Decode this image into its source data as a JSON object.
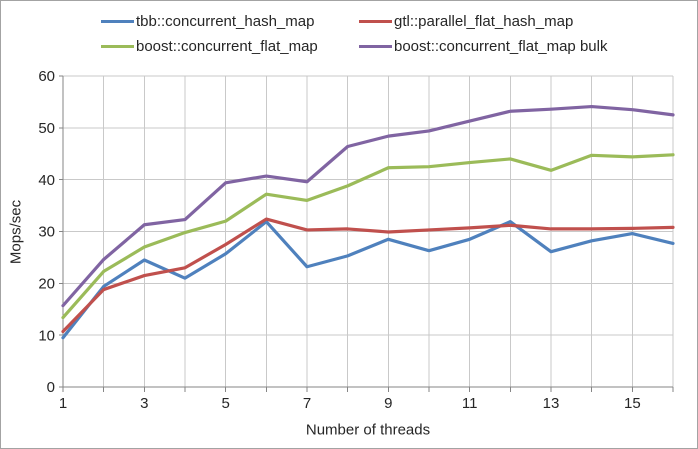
{
  "window": {
    "background": "#ffffff",
    "border_color": "#a3a3a3"
  },
  "chart_data": {
    "type": "line",
    "title": "",
    "xlabel": "Number of threads",
    "ylabel": "Mops/sec",
    "xlim": [
      1,
      16
    ],
    "ylim": [
      0,
      60
    ],
    "x": [
      1,
      2,
      3,
      4,
      5,
      6,
      7,
      8,
      9,
      10,
      11,
      12,
      13,
      14,
      15,
      16
    ],
    "yticks": [
      0,
      10,
      20,
      30,
      40,
      50,
      60
    ],
    "xtick_labels": [
      "1",
      "3",
      "5",
      "7",
      "9",
      "11",
      "13",
      "15"
    ],
    "xtick_label_values": [
      1,
      3,
      5,
      7,
      9,
      11,
      13,
      15
    ],
    "grid": true,
    "legend_position": "top-center-two-columns",
    "series": [
      {
        "name": "tbb::concurrent_hash_map",
        "color": "#4f81bd",
        "values": [
          9.5,
          19.4,
          24.5,
          21.0,
          25.7,
          31.9,
          23.2,
          25.3,
          28.5,
          26.3,
          28.5,
          31.9,
          26.1,
          28.2,
          29.6,
          27.7
        ]
      },
      {
        "name": "gtl::parallel_flat_hash_map",
        "color": "#c0504d",
        "values": [
          10.7,
          18.8,
          21.5,
          23.0,
          27.5,
          32.4,
          30.3,
          30.5,
          29.9,
          30.3,
          30.7,
          31.2,
          30.5,
          30.5,
          30.6,
          30.8
        ]
      },
      {
        "name": "boost::concurrent_flat_map",
        "color": "#9bbb59",
        "values": [
          13.4,
          22.3,
          27.0,
          29.8,
          32.0,
          37.2,
          36.0,
          38.8,
          42.3,
          42.5,
          43.3,
          44.0,
          41.8,
          44.7,
          44.4,
          44.8
        ]
      },
      {
        "name": "boost::concurrent_flat_map bulk",
        "color": "#8064a2",
        "values": [
          15.7,
          24.6,
          31.3,
          32.3,
          39.4,
          40.7,
          39.6,
          46.4,
          48.4,
          49.4,
          51.3,
          53.2,
          53.6,
          54.1,
          53.5,
          52.5
        ]
      }
    ],
    "styling": {
      "gridline_color": "#c9c9c9",
      "axis_color": "#868686",
      "text_color": "#262626",
      "line_width": 3.2
    }
  }
}
